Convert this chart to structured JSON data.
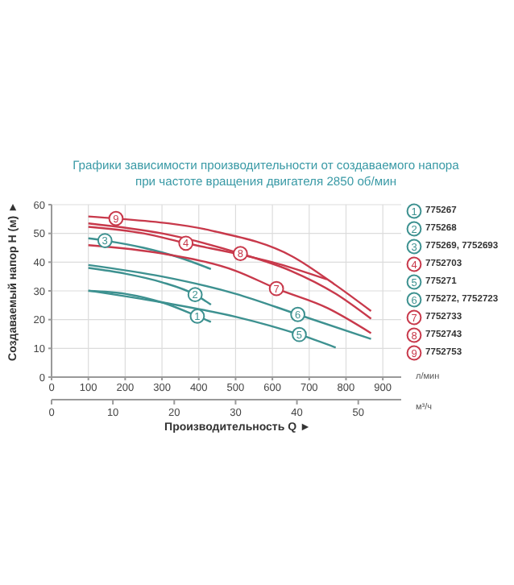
{
  "chart_data": {
    "type": "line",
    "title": "Графики зависимости производительности от создаваемого напора\nпри частоте вращения двигателя 2850 об/мин",
    "xlabel": "л/мин",
    "x2label": "м³/ч",
    "ylabel": "Создаваемый напор H (м) ►",
    "xlim": [
      0,
      950
    ],
    "xticks": [
      0,
      100,
      200,
      300,
      400,
      500,
      600,
      700,
      800,
      900
    ],
    "x2lim": [
      0,
      57
    ],
    "x2ticks": [
      0,
      10,
      20,
      30,
      40,
      50
    ],
    "ylim": [
      0,
      60
    ],
    "yticks": [
      0,
      10,
      20,
      30,
      40,
      50,
      60
    ],
    "grid": true,
    "legend": "right",
    "series": [
      {
        "name": "775267",
        "color": "#3d9190",
        "x": [
          100,
          200,
          300,
          396,
          433
        ],
        "values": [
          30,
          29,
          26,
          21.2,
          19.2
        ]
      },
      {
        "name": "775268",
        "color": "#3d9190",
        "x": [
          100,
          200,
          300,
          390,
          433
        ],
        "values": [
          38,
          36,
          33,
          28.7,
          25.2
        ]
      },
      {
        "name": "775269, 7752693",
        "color": "#3d9190",
        "x": [
          100,
          145,
          250,
          350,
          433
        ],
        "values": [
          48.3,
          47.5,
          45,
          41.5,
          37.6
        ]
      },
      {
        "name": "7752703",
        "color": "#c8394b",
        "x": [
          100,
          250,
          365,
          500,
          600,
          748
        ],
        "values": [
          52.3,
          50,
          46.6,
          43,
          40,
          34
        ]
      },
      {
        "name": "775271",
        "color": "#3d9190",
        "x": [
          100,
          300,
          500,
          673,
          772
        ],
        "values": [
          30.1,
          26,
          21,
          14.8,
          10.3
        ]
      },
      {
        "name": "775272, 7752723",
        "color": "#3d9190",
        "x": [
          100,
          300,
          500,
          669,
          868
        ],
        "values": [
          39,
          35,
          29,
          21.8,
          13.3
        ]
      },
      {
        "name": "7752733",
        "color": "#c8394b",
        "x": [
          100,
          300,
          500,
          611,
          750,
          868
        ],
        "values": [
          45.9,
          43,
          37,
          30.8,
          24,
          15.3
        ]
      },
      {
        "name": "7752743",
        "color": "#c8394b",
        "x": [
          100,
          300,
          513,
          650,
          772,
          868
        ],
        "values": [
          53.5,
          50,
          43,
          37,
          29,
          20.3
        ]
      },
      {
        "name": "7752753",
        "color": "#c8394b",
        "x": [
          100,
          175,
          433,
          654,
          772,
          868
        ],
        "values": [
          55.9,
          55.2,
          51,
          42,
          32,
          23
        ]
      }
    ],
    "annotations": [
      {
        "text": "1",
        "x": 396,
        "y": 21.2
      },
      {
        "text": "2",
        "x": 390,
        "y": 28.7
      },
      {
        "text": "3",
        "x": 145,
        "y": 47.5
      },
      {
        "text": "4",
        "x": 365,
        "y": 46.6
      },
      {
        "text": "5",
        "x": 673,
        "y": 14.8
      },
      {
        "text": "6",
        "x": 669,
        "y": 21.8
      },
      {
        "text": "7",
        "x": 611,
        "y": 30.8
      },
      {
        "text": "8",
        "x": 513,
        "y": 43
      },
      {
        "text": "9",
        "x": 175,
        "y": 55.2
      },
      "Производительность Q ►"
    ]
  }
}
